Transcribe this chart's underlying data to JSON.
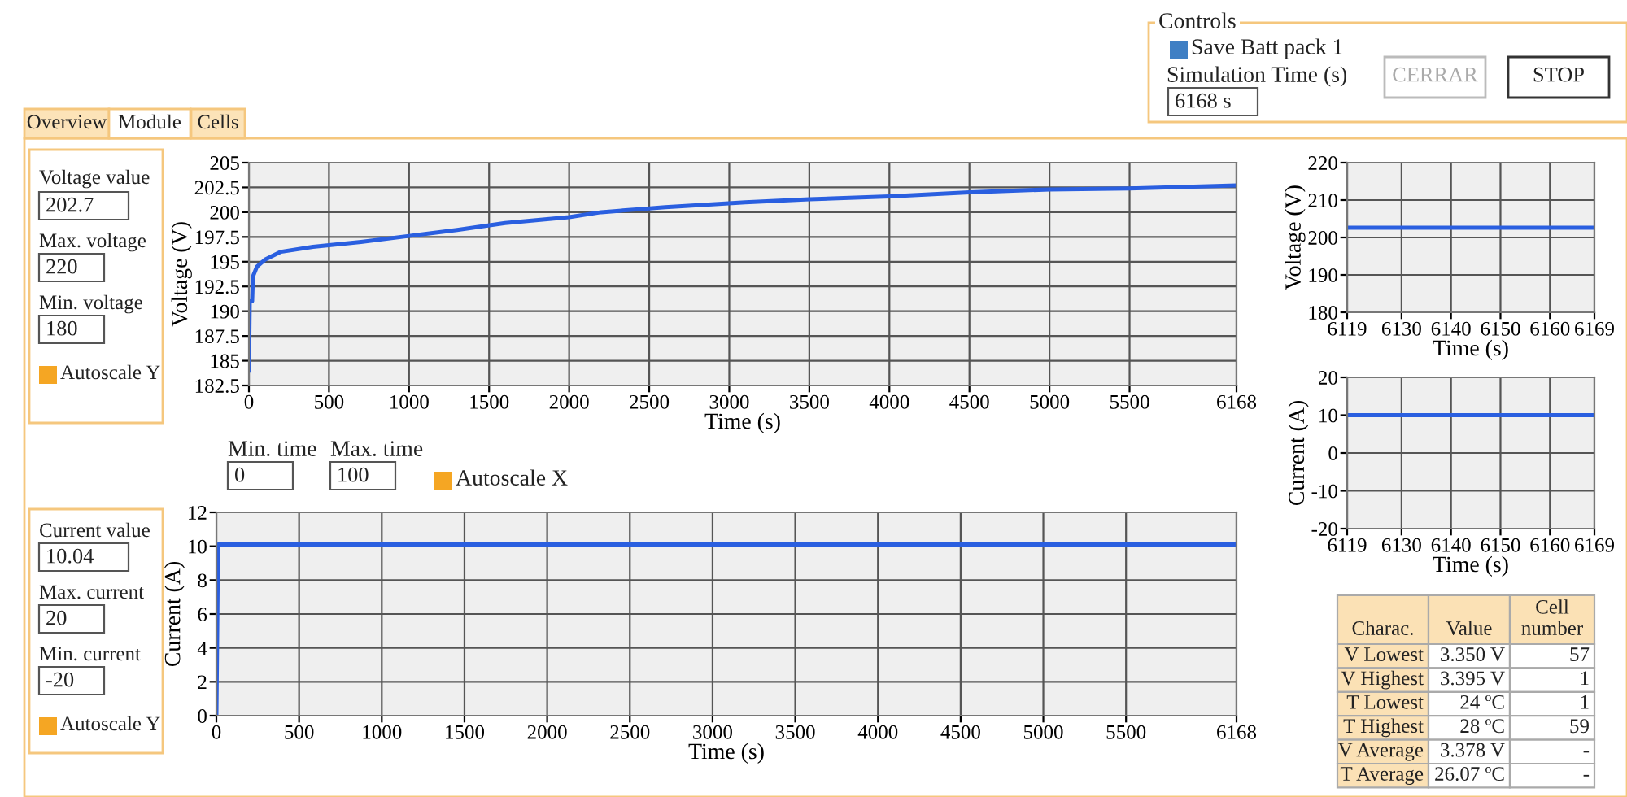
{
  "chart_data": [
    {
      "type": "other",
      "annotations": [
        "Controls",
        "Save Batt pack 1",
        "Simulation Time (s)",
        "6168 s",
        "CERRAR",
        "STOP",
        "Overview",
        "Module",
        "Cells"
      ]
    },
    {
      "type": "other",
      "annotations": [
        "Voltage value",
        "202.7",
        "Max. voltage",
        "220",
        "Min. voltage",
        "180",
        "Autoscale Y"
      ]
    },
    {
      "type": "line",
      "xlabel": "Time (s)",
      "ylabel": "Voltage (V)",
      "grid": true,
      "marker": "none",
      "line_style": "solid",
      "xlim": [
        0,
        6168
      ],
      "xticks": [
        0,
        500,
        1000,
        1500,
        2000,
        2500,
        3000,
        3500,
        4000,
        4500,
        5000,
        5500,
        6168
      ],
      "ylim": [
        182.5,
        205
      ],
      "yticks": [
        182.5,
        185,
        187.5,
        190,
        192.5,
        195,
        197.5,
        200,
        202.5,
        205
      ],
      "series": [
        {
          "color": "#2a5fe0",
          "x": [
            0,
            5,
            20,
            25,
            50,
            100,
            200,
            400,
            700,
            1000,
            1300,
            1600,
            2000,
            2200,
            2600,
            3100,
            3500,
            4000,
            4500,
            5000,
            5500,
            6168
          ],
          "values": [
            184,
            191,
            191,
            193.5,
            194.5,
            195.2,
            196,
            196.5,
            197,
            197.6,
            198.2,
            198.9,
            199.5,
            200,
            200.5,
            201,
            201.3,
            201.6,
            202,
            202.3,
            202.4,
            202.7
          ]
        }
      ]
    },
    {
      "type": "other",
      "annotations": [
        "Min. time",
        "0",
        "Max. time",
        "100",
        "Autoscale X"
      ]
    },
    {
      "type": "other",
      "annotations": [
        "Current value",
        "10.04",
        "Max. current",
        "20",
        "Min. current",
        "-20",
        "Autoscale Y"
      ]
    },
    {
      "type": "line",
      "xlabel": "Time (s)",
      "ylabel": "Current (A)",
      "grid": true,
      "marker": "none",
      "line_style": "solid",
      "xlim": [
        0,
        6168
      ],
      "xticks": [
        0,
        500,
        1000,
        1500,
        2000,
        2500,
        3000,
        3500,
        4000,
        4500,
        5000,
        5500,
        6168
      ],
      "ylim": [
        0,
        12
      ],
      "yticks": [
        0,
        2,
        4,
        6,
        8,
        10,
        12
      ],
      "series": [
        {
          "color": "#2a5fe0",
          "x": [
            0,
            10,
            6168
          ],
          "values": [
            0,
            10.1,
            10.1
          ]
        }
      ]
    },
    {
      "type": "line",
      "xlabel": "Time (s)",
      "ylabel": "Voltage (V)",
      "grid": true,
      "marker": "none",
      "line_style": "solid",
      "xlim": [
        6119,
        6169
      ],
      "xticks": [
        6119,
        6130,
        6140,
        6150,
        6160,
        6169
      ],
      "ylim": [
        180,
        220
      ],
      "yticks": [
        180,
        190,
        200,
        210,
        220
      ],
      "series": [
        {
          "color": "#2a5fe0",
          "x": [
            6119,
            6169
          ],
          "values": [
            202.6,
            202.6
          ]
        }
      ]
    },
    {
      "type": "line",
      "xlabel": "Time (s)",
      "ylabel": "Current (A)",
      "grid": true,
      "marker": "none",
      "line_style": "solid",
      "xlim": [
        6119,
        6169
      ],
      "xticks": [
        6119,
        6130,
        6140,
        6150,
        6160,
        6169
      ],
      "ylim": [
        -20,
        20
      ],
      "yticks": [
        -20,
        -10,
        0,
        10,
        20
      ],
      "series": [
        {
          "color": "#2a5fe0",
          "x": [
            6119,
            6169
          ],
          "values": [
            10,
            10
          ]
        }
      ]
    },
    {
      "type": "other",
      "annotations": [
        "Charac.",
        "Value",
        "Cell number",
        "V Lowest",
        "3.350 V",
        "57",
        "V Highest",
        "3.395 V",
        "1",
        "T Lowest",
        "24 ºC",
        "1",
        "T Highest",
        "28 ºC",
        "59",
        "V Average",
        "3.378 V",
        "-",
        "T Average",
        "26.07 ºC",
        "-"
      ]
    }
  ]
}
